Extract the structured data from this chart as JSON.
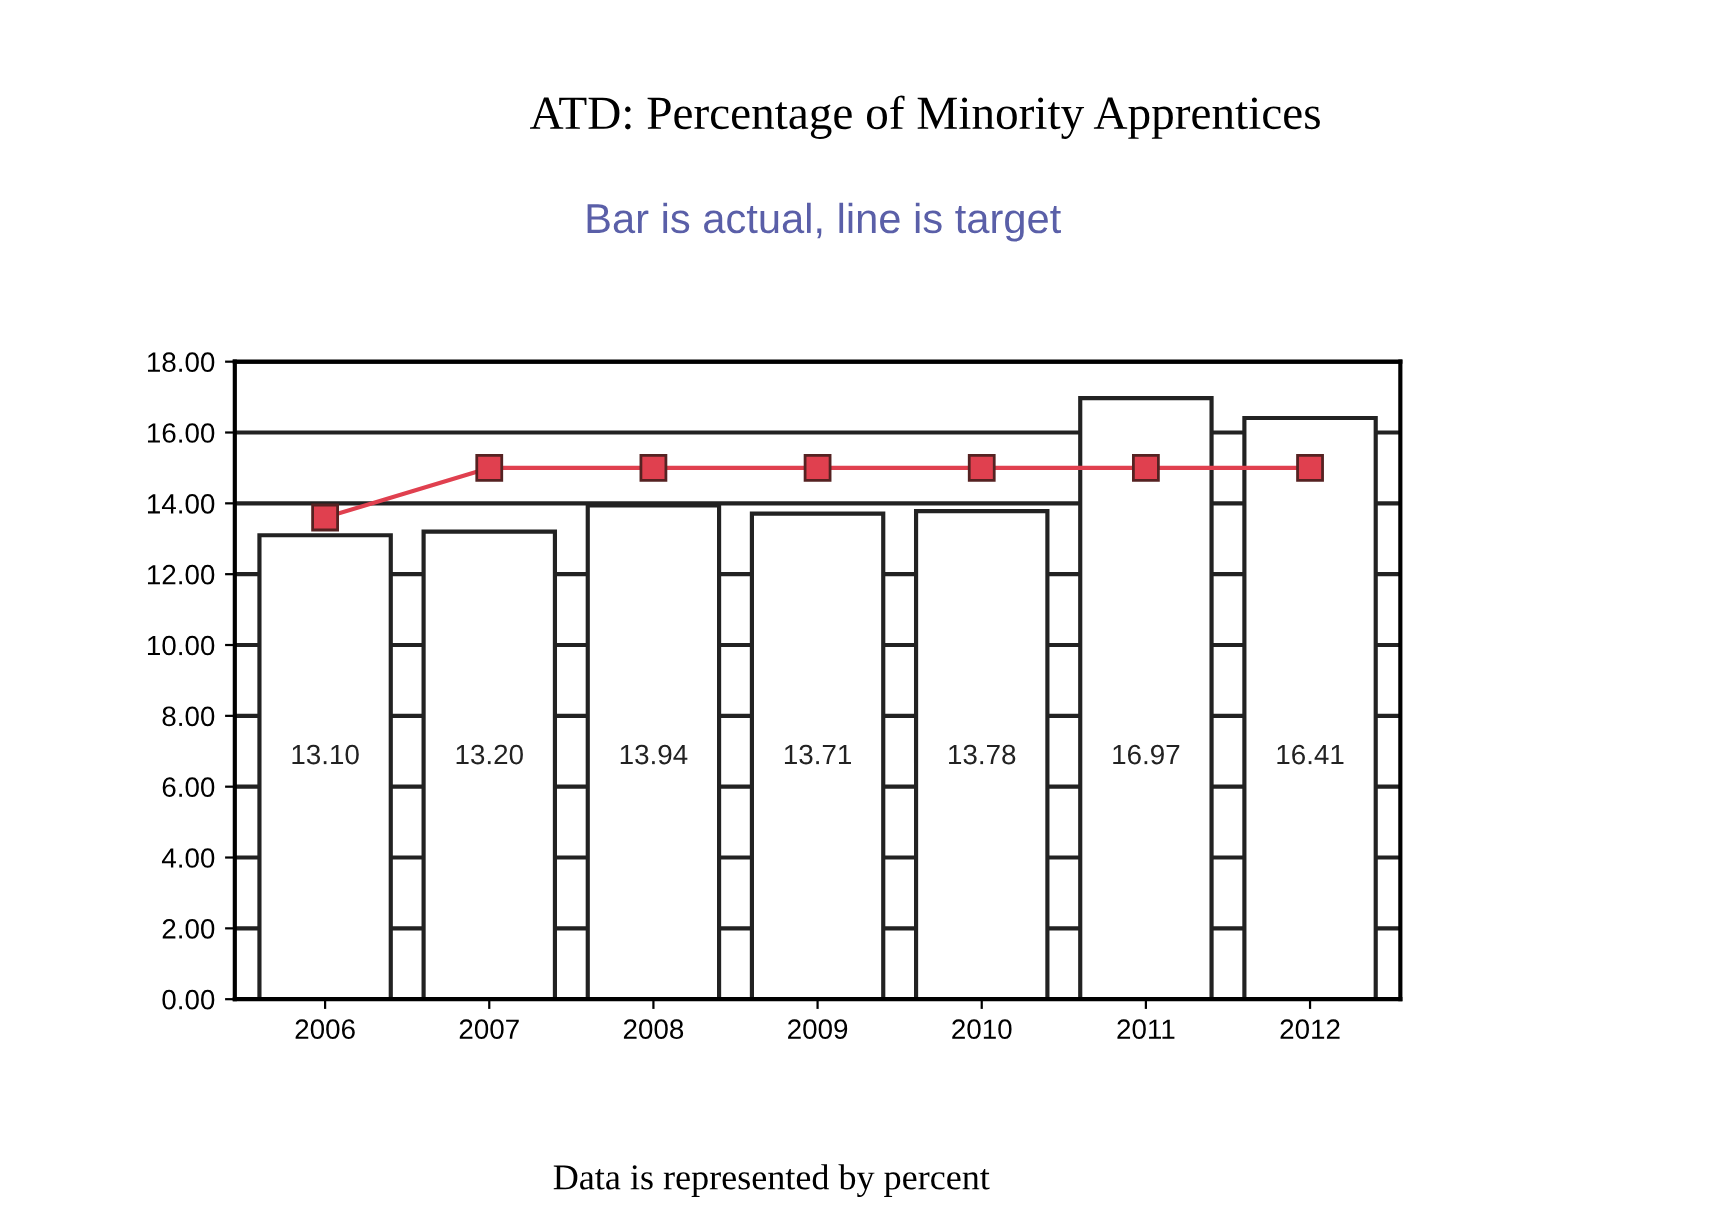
{
  "chart_data": {
    "type": "bar",
    "title": "ATD: Percentage of Minority Apprentices",
    "subtitle": "Bar is actual, line is target",
    "categories": [
      "2006",
      "2007",
      "2008",
      "2009",
      "2010",
      "2011",
      "2012"
    ],
    "series": [
      {
        "color": "#ffffff",
        "values": [
          13.1,
          13.2,
          13.94,
          13.71,
          13.78,
          16.97,
          16.41
        ],
        "value_labels": [
          "13.10",
          "13.20",
          "13.94",
          "13.71",
          "13.78",
          "16.97",
          "16.41"
        ]
      },
      {
        "type": "line",
        "color": "#e0404f",
        "values": [
          13.6,
          15.0,
          15.0,
          15.0,
          15.0,
          15.0,
          15.0
        ],
        "marker": "square",
        "line_style": "solid"
      }
    ],
    "ylim": [
      0,
      18
    ],
    "yticks": [
      {
        "value": 0,
        "label": "0.00"
      },
      {
        "value": 2,
        "label": "2.00"
      },
      {
        "value": 4,
        "label": "4.00"
      },
      {
        "value": 6,
        "label": "6.00"
      },
      {
        "value": 8,
        "label": "8.00"
      },
      {
        "value": 10,
        "label": "10.00"
      },
      {
        "value": 12,
        "label": "12.00"
      },
      {
        "value": 14,
        "label": "14.00"
      },
      {
        "value": 16,
        "label": "16.00"
      },
      {
        "value": 18,
        "label": "18.00"
      }
    ],
    "grid": "y",
    "legend": false,
    "annotations": [
      "Data is represented by percent"
    ]
  }
}
